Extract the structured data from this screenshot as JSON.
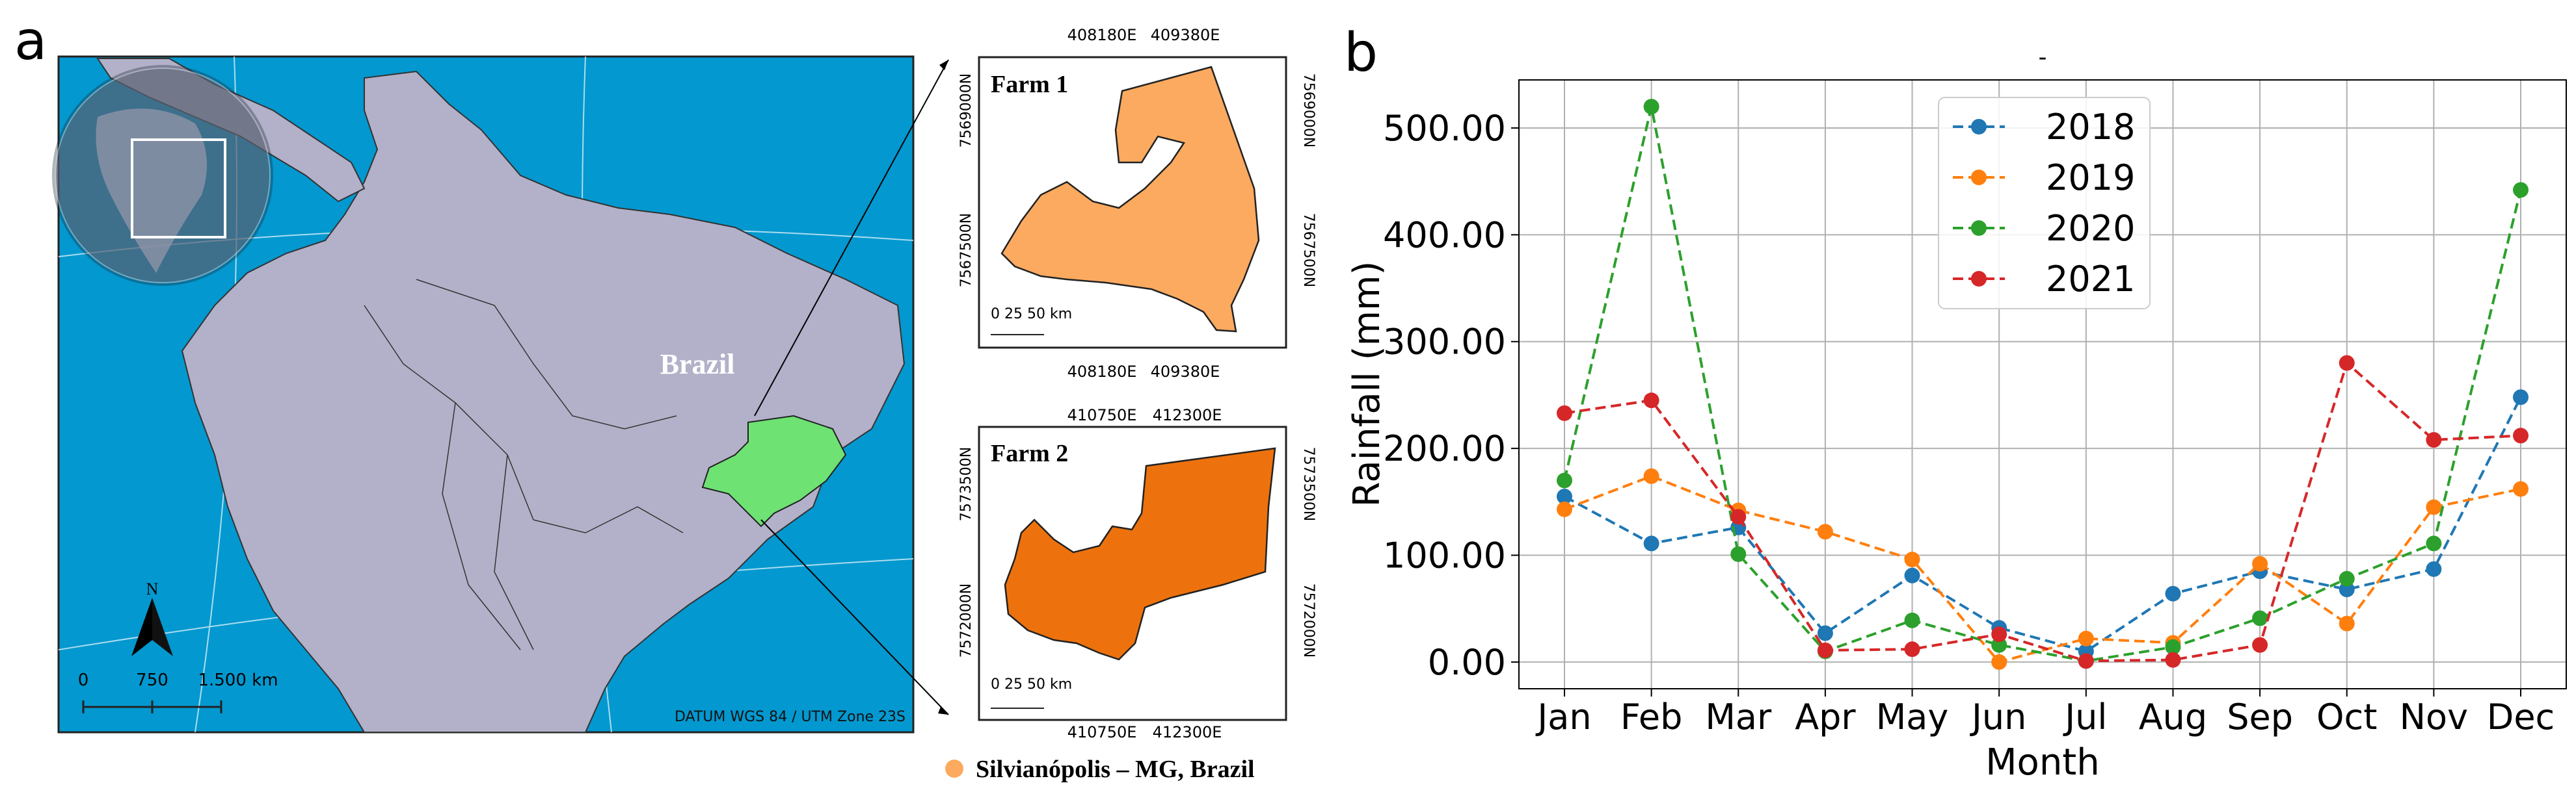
{
  "panel_a": {
    "letter": "a",
    "country_label": "Brazil",
    "scale_labels": [
      "0",
      "750",
      "1.500 km"
    ],
    "north_label": "N",
    "datum": "DATUM WGS 84 / UTM Zone 23S",
    "farm1": {
      "title": "Farm 1",
      "top_ticks": [
        "408180E",
        "409380E"
      ],
      "bottom_ticks": [
        "408180E",
        "409380E"
      ],
      "left_ticks": [
        "7569000N",
        "7567500N"
      ],
      "right_ticks": [
        "7569000N",
        "7567500N"
      ],
      "scale": "0  25  50 km"
    },
    "farm2": {
      "title": "Farm 2",
      "top_ticks": [
        "410750E",
        "412300E"
      ],
      "bottom_ticks": [
        "410750E",
        "412300E"
      ],
      "left_ticks": [
        "7573500N",
        "7572000N"
      ],
      "right_ticks": [
        "7573500N",
        "7572000N"
      ],
      "scale": "0  25  50 km"
    },
    "legend_label": "Silvianópolis – MG, Brazil",
    "colors": {
      "ocean": "#0398cf",
      "land": "#b3b1c9",
      "state": "#6ee273",
      "farm1": "#fcaa5f",
      "farm2": "#ed720d"
    }
  },
  "chart_data": {
    "type": "line",
    "panel_letter": "b",
    "title": "-",
    "xlabel": "Month",
    "ylabel": "Rainfall (mm)",
    "categories": [
      "Jan",
      "Feb",
      "Mar",
      "Apr",
      "May",
      "Jun",
      "Jul",
      "Aug",
      "Sep",
      "Oct",
      "Nov",
      "Dec"
    ],
    "ylim": [
      -25,
      545
    ],
    "yticks": [
      "0.00",
      "100.00",
      "200.00",
      "300.00",
      "400.00",
      "500.00"
    ],
    "ytick_values": [
      0,
      100,
      200,
      300,
      400,
      500
    ],
    "grid": true,
    "legend_position": "top-center",
    "series": [
      {
        "name": "2018",
        "color": "#1f77b4",
        "values": [
          155,
          111,
          126,
          27,
          81,
          32,
          10,
          64,
          85,
          68,
          87,
          248
        ]
      },
      {
        "name": "2019",
        "color": "#ff7f0e",
        "values": [
          143,
          174,
          142,
          122,
          96,
          0,
          22,
          18,
          92,
          36,
          145,
          162
        ]
      },
      {
        "name": "2020",
        "color": "#2ca02c",
        "values": [
          170,
          520,
          101,
          10,
          39,
          16,
          1,
          14,
          41,
          78,
          111,
          442
        ]
      },
      {
        "name": "2021",
        "color": "#d62728",
        "values": [
          233,
          245,
          136,
          11,
          12,
          26,
          1,
          2,
          16,
          280,
          208,
          212
        ]
      }
    ]
  }
}
